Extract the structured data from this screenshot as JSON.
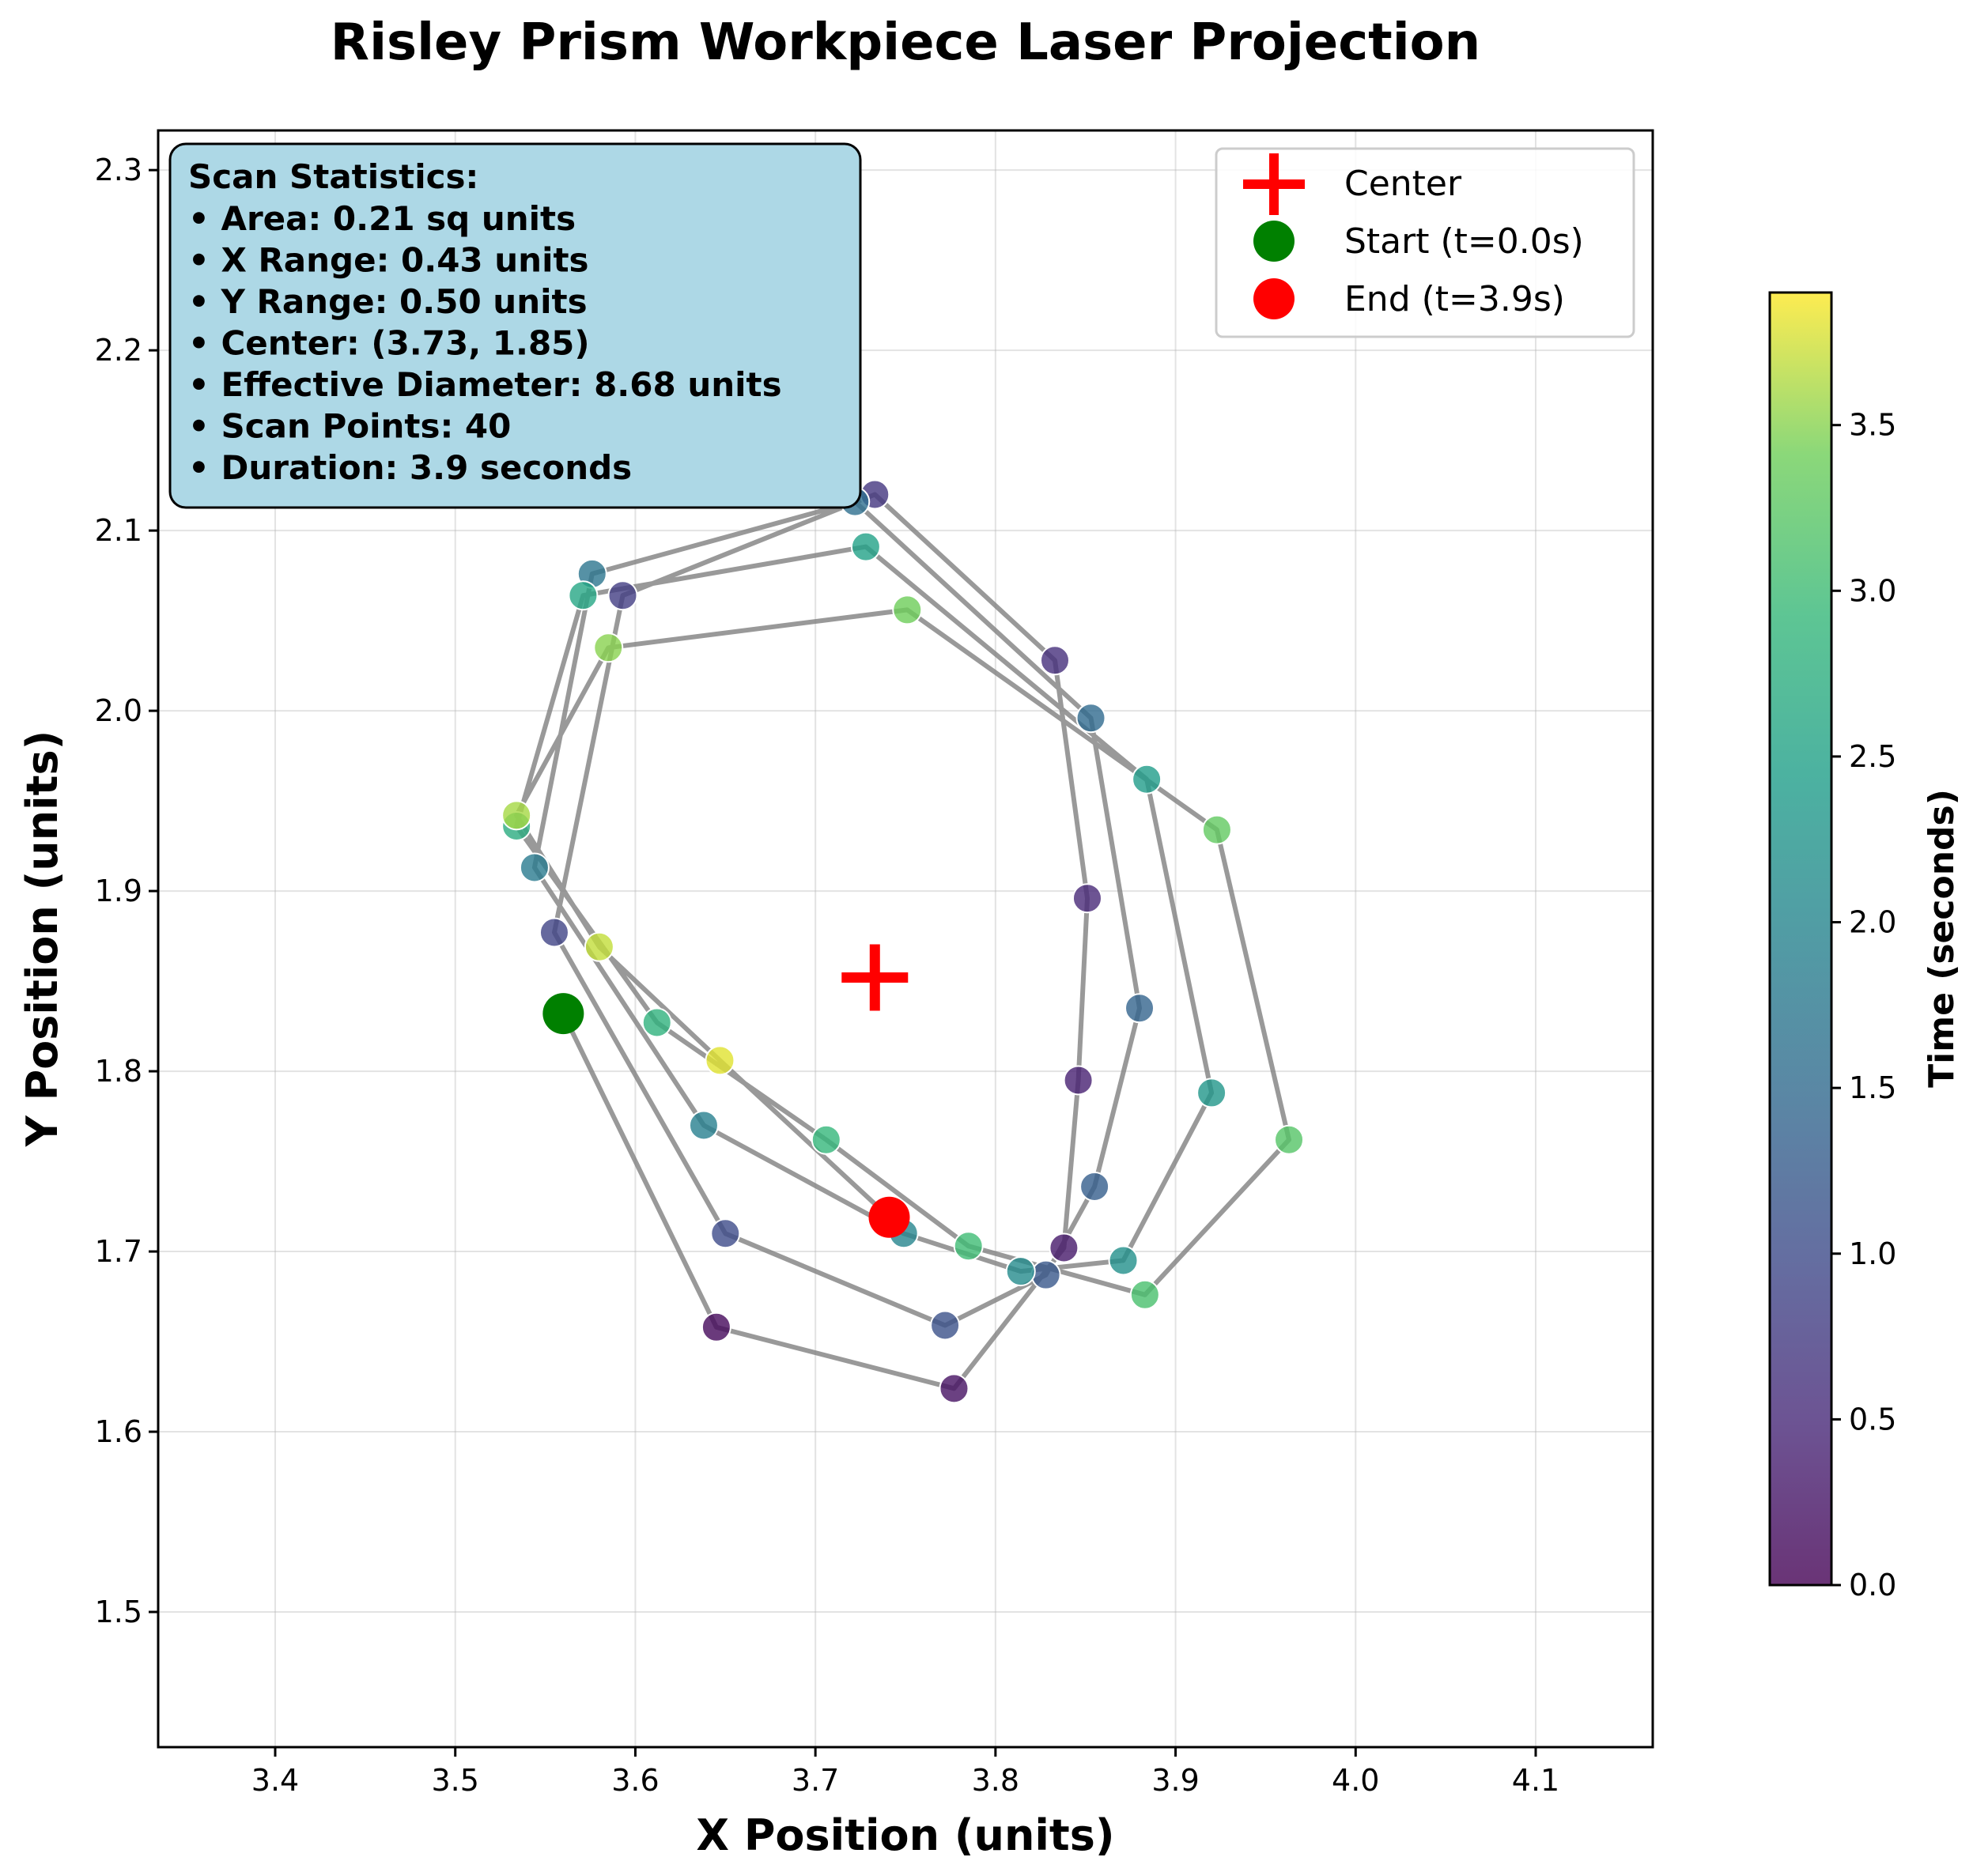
{
  "chart_data": {
    "type": "scatter",
    "title": "Risley Prism Workpiece Laser Projection",
    "xlabel": "X Position (units)",
    "ylabel": "Y Position (units)",
    "xlim": [
      3.335,
      4.165
    ],
    "ylim": [
      1.425,
      2.322
    ],
    "x_ticks": [
      "3.4",
      "3.5",
      "3.6",
      "3.7",
      "3.8",
      "3.9",
      "4.0",
      "4.1"
    ],
    "y_ticks": [
      "1.5",
      "1.6",
      "1.7",
      "1.8",
      "1.9",
      "2.0",
      "2.1",
      "2.2",
      "2.3"
    ],
    "grid": true,
    "legend_position": "top-right",
    "legend": [
      {
        "label": "Center",
        "marker": "plus",
        "color": "#ff0000"
      },
      {
        "label": "Start (t=0.0s)",
        "marker": "circle",
        "color": "#008000"
      },
      {
        "label": "End (t=3.9s)",
        "marker": "circle",
        "color": "#ff0000"
      }
    ],
    "colorbar": {
      "label": "Time (seconds)",
      "range": [
        0,
        3.9
      ],
      "ticks": [
        "0.0",
        "0.5",
        "1.0",
        "1.5",
        "2.0",
        "2.5",
        "3.0",
        "3.5"
      ],
      "colormap": "viridis"
    },
    "center": {
      "x": 3.733,
      "y": 1.852
    },
    "start": {
      "x": 3.56,
      "y": 1.832,
      "t": 0.0
    },
    "end": {
      "x": 3.741,
      "y": 1.719,
      "t": 3.9
    },
    "series": [
      {
        "points": [
          {
            "x": 3.56,
            "y": 1.832,
            "t": 0.0
          },
          {
            "x": 3.645,
            "y": 1.658,
            "t": 0.1
          },
          {
            "x": 3.777,
            "y": 1.624,
            "t": 0.2
          },
          {
            "x": 3.838,
            "y": 1.702,
            "t": 0.3
          },
          {
            "x": 3.846,
            "y": 1.795,
            "t": 0.4
          },
          {
            "x": 3.851,
            "y": 1.896,
            "t": 0.5
          },
          {
            "x": 3.833,
            "y": 2.028,
            "t": 0.6
          },
          {
            "x": 3.733,
            "y": 2.12,
            "t": 0.7
          },
          {
            "x": 3.593,
            "y": 2.064,
            "t": 0.8
          },
          {
            "x": 3.555,
            "y": 1.877,
            "t": 0.9
          },
          {
            "x": 3.65,
            "y": 1.71,
            "t": 1.0
          },
          {
            "x": 3.772,
            "y": 1.659,
            "t": 1.1
          },
          {
            "x": 3.828,
            "y": 1.687,
            "t": 1.2
          },
          {
            "x": 3.855,
            "y": 1.736,
            "t": 1.3
          },
          {
            "x": 3.88,
            "y": 1.835,
            "t": 1.4
          },
          {
            "x": 3.853,
            "y": 1.996,
            "t": 1.5
          },
          {
            "x": 3.722,
            "y": 2.116,
            "t": 1.6
          },
          {
            "x": 3.576,
            "y": 2.076,
            "t": 1.7
          },
          {
            "x": 3.544,
            "y": 1.913,
            "t": 1.8
          },
          {
            "x": 3.638,
            "y": 1.77,
            "t": 1.9
          },
          {
            "x": 3.749,
            "y": 1.71,
            "t": 2.0
          },
          {
            "x": 3.814,
            "y": 1.689,
            "t": 2.1
          },
          {
            "x": 3.871,
            "y": 1.695,
            "t": 2.2
          },
          {
            "x": 3.92,
            "y": 1.788,
            "t": 2.3
          },
          {
            "x": 3.884,
            "y": 1.962,
            "t": 2.4
          },
          {
            "x": 3.728,
            "y": 2.091,
            "t": 2.5
          },
          {
            "x": 3.571,
            "y": 2.064,
            "t": 2.6
          },
          {
            "x": 3.534,
            "y": 1.936,
            "t": 2.7
          },
          {
            "x": 3.612,
            "y": 1.827,
            "t": 2.8
          },
          {
            "x": 3.706,
            "y": 1.762,
            "t": 2.9
          },
          {
            "x": 3.785,
            "y": 1.703,
            "t": 3.0
          },
          {
            "x": 3.883,
            "y": 1.676,
            "t": 3.1
          },
          {
            "x": 3.963,
            "y": 1.762,
            "t": 3.2
          },
          {
            "x": 3.923,
            "y": 1.934,
            "t": 3.3
          },
          {
            "x": 3.751,
            "y": 2.056,
            "t": 3.4
          },
          {
            "x": 3.585,
            "y": 2.035,
            "t": 3.5
          },
          {
            "x": 3.534,
            "y": 1.942,
            "t": 3.6
          },
          {
            "x": 3.58,
            "y": 1.869,
            "t": 3.7
          },
          {
            "x": 3.647,
            "y": 1.806,
            "t": 3.8
          },
          {
            "x": 3.741,
            "y": 1.719,
            "t": 3.9
          }
        ]
      }
    ]
  },
  "stats_box": {
    "heading": "Scan Statistics:",
    "lines": [
      "• Area: 0.21 sq units",
      "• X Range: 0.43 units",
      "• Y Range: 0.50 units",
      "• Center: (3.73, 1.85)",
      "• Effective Diameter: 8.68 units",
      "• Scan Points: 40",
      "• Duration: 3.9 seconds"
    ],
    "background": "#add8e6"
  }
}
